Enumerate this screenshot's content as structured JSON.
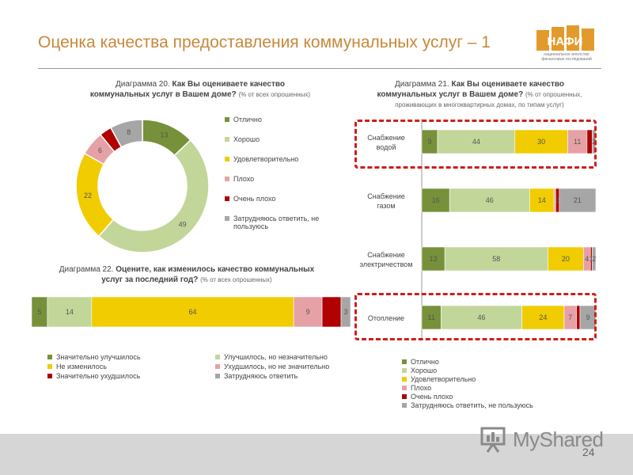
{
  "title": "Оценка качества предоставления коммунальных услуг – 1",
  "logo": {
    "text": "НАФИ",
    "subtitle1": "национальное агентство",
    "subtitle2": "финансовых исследований"
  },
  "footer": {
    "page_number": "24",
    "watermark": "MyShared"
  },
  "colors": {
    "excellent": "#77913a",
    "good": "#c2d69a",
    "satisfactory": "#f0cc00",
    "bad": "#e6a1a6",
    "very_bad": "#b00000",
    "dont_know": "#a6a6a6",
    "title": "#c8883a",
    "highlight": "#cc1f1f"
  },
  "diagram20": {
    "caption_prefix": "Диаграмма 20.",
    "caption_bold1": "Как Вы оцениваете качество",
    "caption_bold2": "коммунальных услуг в Вашем доме?",
    "caption_note": "(% от всех опрошенных)",
    "legend": [
      "Отлично",
      "Хорошо",
      "Удовлетворительно",
      "Плохо",
      "Очень плохо",
      "Затрудняюсь ответить, не пользуюсь"
    ]
  },
  "diagram21": {
    "caption_prefix": "Диаграмма 21.",
    "caption_bold1": "Как Вы оцениваете качество",
    "caption_bold2": "коммунальных услуг в Вашем доме?",
    "caption_note1": "(% от опрошенных,",
    "caption_note2": "проживающих в многоквартирных домах, по типам услуг)",
    "categories": [
      {
        "line1": "Снабжение",
        "line2": "водой"
      },
      {
        "line1": "Снабжение",
        "line2": "газом"
      },
      {
        "line1": "Снабжение",
        "line2": "электричеством"
      },
      {
        "line1": "Отопление",
        "line2": ""
      }
    ],
    "legend": [
      "Отлично",
      "Хорошо",
      "Удовлетворительно",
      "Плохо",
      "Очень плохо",
      "Затрудняюсь ответить, не пользуюсь"
    ]
  },
  "diagram22": {
    "caption_prefix": "Диаграмма 22.",
    "caption_bold1": "Оцените, как изменилось качество коммунальных",
    "caption_bold2": "услуг за последний год?",
    "caption_note": "(% от всех опрошенных)",
    "legend": [
      "Значительно улучшилось",
      "Улучшилось, но незначительно",
      "Не изменилось",
      "Ухудшилось, но не значительно",
      "Значительно ухудшилось",
      "Затрудняюсь ответить"
    ]
  },
  "chart_data": [
    {
      "type": "pie",
      "title": "Диаграмма 20. Как Вы оцениваете качество коммунальных услуг в Вашем доме? (% от всех опрошенных)",
      "variant": "donut",
      "categories": [
        "Отлично",
        "Хорошо",
        "Удовлетворительно",
        "Плохо",
        "Очень плохо",
        "Затрудняюсь ответить, не пользуюсь"
      ],
      "values": [
        13,
        49,
        22,
        6,
        3,
        8
      ],
      "labels": [
        "13",
        "49",
        "22",
        "6",
        "",
        "8"
      ],
      "colors": [
        "#77913a",
        "#c2d69a",
        "#f0cc00",
        "#e6a1a6",
        "#b00000",
        "#a6a6a6"
      ],
      "legend_position": "right"
    },
    {
      "type": "bar",
      "orientation": "horizontal",
      "stacked": true,
      "title": "Диаграмма 21. Как Вы оцениваете качество коммунальных услуг в Вашем доме? (% от опрошенных, проживающих в многоквартирных домах, по типам услуг)",
      "categories": [
        "Снабжение водой",
        "Снабжение газом",
        "Снабжение электричеством",
        "Отопление"
      ],
      "series": [
        {
          "name": "Отлично",
          "values": [
            9,
            16,
            13,
            11
          ],
          "labels": [
            "9",
            "16",
            "13",
            "11"
          ]
        },
        {
          "name": "Хорошо",
          "values": [
            44,
            46,
            58,
            46
          ],
          "labels": [
            "44",
            "46",
            "58",
            "46"
          ]
        },
        {
          "name": "Удовлетворительно",
          "values": [
            30,
            14,
            20,
            24
          ],
          "labels": [
            "30",
            "14",
            "20",
            "24"
          ]
        },
        {
          "name": "Плохо",
          "values": [
            11,
            1,
            4,
            7
          ],
          "labels": [
            "11",
            "",
            "4",
            "7"
          ]
        },
        {
          "name": "Очень плохо",
          "values": [
            3,
            2,
            1,
            2
          ],
          "labels": [
            "",
            "2",
            "1",
            ""
          ]
        },
        {
          "name": "Затрудняюсь ответить, не пользуюсь",
          "values": [
            2,
            21,
            2,
            9
          ],
          "labels": [
            "2",
            "21",
            "2",
            "9"
          ]
        }
      ],
      "highlighted_categories": [
        "Снабжение водой",
        "Отопление"
      ],
      "legend_position": "bottom"
    },
    {
      "type": "bar",
      "orientation": "horizontal",
      "stacked": true,
      "title": "Диаграмма 22. Оцените, как изменилось качество коммунальных услуг за последний год? (% от всех опрошенных)",
      "categories": [
        ""
      ],
      "series": [
        {
          "name": "Значительно улучшилось",
          "values": [
            5
          ],
          "labels": [
            "5"
          ]
        },
        {
          "name": "Улучшилось, но незначительно",
          "values": [
            14
          ],
          "labels": [
            "14"
          ]
        },
        {
          "name": "Не изменилось",
          "values": [
            64
          ],
          "labels": [
            "64"
          ]
        },
        {
          "name": "Ухудшилось, но не значительно",
          "values": [
            9
          ],
          "labels": [
            "9"
          ]
        },
        {
          "name": "Значительно ухудшилось",
          "values": [
            6
          ],
          "labels": [
            ""
          ]
        },
        {
          "name": "Затрудняюсь ответить",
          "values": [
            3
          ],
          "labels": [
            "3"
          ]
        }
      ],
      "legend_position": "bottom"
    }
  ]
}
